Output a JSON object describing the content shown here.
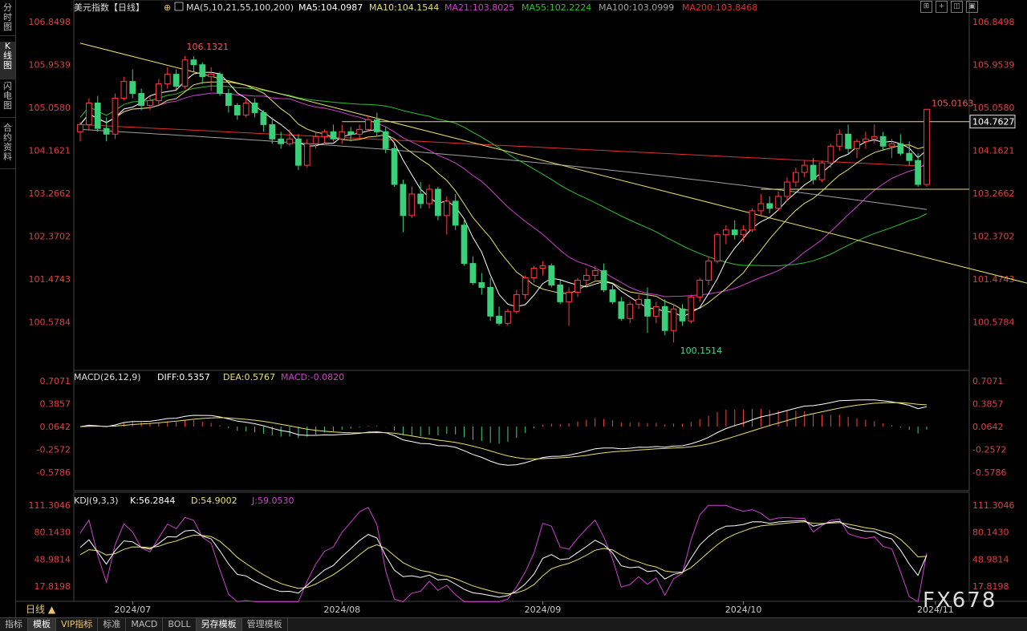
{
  "sidebar": {
    "tabs": [
      {
        "label": "分时图",
        "active": false
      },
      {
        "label": "K线图",
        "active": true
      },
      {
        "label": "闪电图",
        "active": false
      },
      {
        "label": "合约资料",
        "active": false
      }
    ]
  },
  "header": {
    "instrument": "美元指数【日线】",
    "ma_label": "MA(5,10,21,55,100,200)",
    "ma_values": [
      {
        "text": "MA5:104.0987",
        "color": "#ffffff"
      },
      {
        "text": "MA10:104.1544",
        "color": "#e8e070"
      },
      {
        "text": "MA21:103.8025",
        "color": "#d040d0"
      },
      {
        "text": "MA55:102.2224",
        "color": "#30c030"
      },
      {
        "text": "MA100:103.0999",
        "color": "#a0a0a0"
      },
      {
        "text": "MA200:103.8468",
        "color": "#e03030"
      }
    ]
  },
  "toolbar_icons": [
    "grid-icon",
    "plus-icon",
    "split-icon",
    "panel-icon"
  ],
  "price_axis": {
    "ticks": [
      "106.8498",
      "105.9539",
      "105.0580",
      "104.1621",
      "103.2662",
      "102.3702",
      "101.4743",
      "100.5784"
    ],
    "current_price": "104.7627"
  },
  "annotations": {
    "high": "106.1321",
    "low": "100.1514",
    "last": "105.0163"
  },
  "macd": {
    "label": "MACD(26,12,9)",
    "diff": "DIFF:0.5357",
    "dea": "DEA:0.5767",
    "macd": "MACD:-0.0820",
    "ticks": [
      "0.7071",
      "0.3857",
      "0.0642",
      "-0.2572",
      "-0.5786"
    ]
  },
  "kdj": {
    "label": "KDJ(9,3,3)",
    "k": "K:56.2844",
    "d": "D:54.9002",
    "j": "J:59.0530",
    "ticks": [
      "111.3046",
      "80.1430",
      "48.9814",
      "17.8198"
    ]
  },
  "time_axis": [
    "2024/07",
    "2024/08",
    "2024/09",
    "2024/10",
    "2024/11"
  ],
  "period_button": "日线 ▲",
  "bottom_tabs": [
    {
      "label": "指标",
      "active": false,
      "vip": false
    },
    {
      "label": "模板",
      "active": true,
      "vip": false
    },
    {
      "label": "VIP指标",
      "active": false,
      "vip": true
    },
    {
      "label": "标准",
      "active": false,
      "vip": false
    },
    {
      "label": "MACD",
      "active": false,
      "vip": false
    },
    {
      "label": "BOLL",
      "active": false,
      "vip": false
    },
    {
      "label": "另存模板",
      "active": true,
      "vip": false
    },
    {
      "label": "管理模板",
      "active": false,
      "vip": false
    }
  ],
  "watermark": "FX678",
  "chart_data": {
    "type": "candlestick",
    "title": "美元指数【日线】",
    "ylim": [
      99.6,
      107.0
    ],
    "candles": [
      [
        104.55,
        104.75,
        104.35,
        104.7
      ],
      [
        104.7,
        105.25,
        104.6,
        105.15
      ],
      [
        105.15,
        105.3,
        104.55,
        104.62
      ],
      [
        104.62,
        104.85,
        104.35,
        104.5
      ],
      [
        104.5,
        105.35,
        104.4,
        105.25
      ],
      [
        105.25,
        105.7,
        105.2,
        105.6
      ],
      [
        105.6,
        105.85,
        105.25,
        105.35
      ],
      [
        105.35,
        105.45,
        105.0,
        105.1
      ],
      [
        105.1,
        105.3,
        105.0,
        105.2
      ],
      [
        105.2,
        105.65,
        105.1,
        105.55
      ],
      [
        105.55,
        105.9,
        105.45,
        105.75
      ],
      [
        105.75,
        105.85,
        105.4,
        105.5
      ],
      [
        105.5,
        106.13,
        105.45,
        106.05
      ],
      [
        106.05,
        106.13,
        105.8,
        105.95
      ],
      [
        105.95,
        106.0,
        105.55,
        105.7
      ],
      [
        105.7,
        105.9,
        105.4,
        105.75
      ],
      [
        105.75,
        105.8,
        105.3,
        105.35
      ],
      [
        105.35,
        105.45,
        104.95,
        105.1
      ],
      [
        105.1,
        105.15,
        104.8,
        104.9
      ],
      [
        104.9,
        105.25,
        104.85,
        105.15
      ],
      [
        105.15,
        105.25,
        104.85,
        104.95
      ],
      [
        104.95,
        105.0,
        104.55,
        104.7
      ],
      [
        104.7,
        104.85,
        104.3,
        104.4
      ],
      [
        104.4,
        104.55,
        104.2,
        104.3
      ],
      [
        104.3,
        104.6,
        104.25,
        104.4
      ],
      [
        104.4,
        104.5,
        103.75,
        103.85
      ],
      [
        103.85,
        104.4,
        103.8,
        104.3
      ],
      [
        104.3,
        104.55,
        104.2,
        104.45
      ],
      [
        104.45,
        104.6,
        104.3,
        104.55
      ],
      [
        104.55,
        104.7,
        104.35,
        104.4
      ],
      [
        104.4,
        104.7,
        104.3,
        104.55
      ],
      [
        104.55,
        104.65,
        104.35,
        104.5
      ],
      [
        104.5,
        104.7,
        104.4,
        104.6
      ],
      [
        104.6,
        104.9,
        104.55,
        104.8
      ],
      [
        104.8,
        104.95,
        104.45,
        104.55
      ],
      [
        104.55,
        104.65,
        104.1,
        104.2
      ],
      [
        104.2,
        104.3,
        103.4,
        103.45
      ],
      [
        103.45,
        103.55,
        102.45,
        102.8
      ],
      [
        102.8,
        103.4,
        102.75,
        103.25
      ],
      [
        103.25,
        103.5,
        102.95,
        103.05
      ],
      [
        103.05,
        103.45,
        102.95,
        103.35
      ],
      [
        103.35,
        103.4,
        102.7,
        102.8
      ],
      [
        102.8,
        103.2,
        102.4,
        103.1
      ],
      [
        103.1,
        103.25,
        102.5,
        102.6
      ],
      [
        102.6,
        102.7,
        101.75,
        101.8
      ],
      [
        101.8,
        101.95,
        101.35,
        101.4
      ],
      [
        101.4,
        101.6,
        101.15,
        101.3
      ],
      [
        101.3,
        101.5,
        100.6,
        100.7
      ],
      [
        100.7,
        100.9,
        100.5,
        100.55
      ],
      [
        100.55,
        100.85,
        100.5,
        100.8
      ],
      [
        100.8,
        101.25,
        100.75,
        101.15
      ],
      [
        101.15,
        101.55,
        101.05,
        101.5
      ],
      [
        101.5,
        101.75,
        101.4,
        101.7
      ],
      [
        101.7,
        101.85,
        101.55,
        101.75
      ],
      [
        101.75,
        101.8,
        101.3,
        101.35
      ],
      [
        101.35,
        101.45,
        100.95,
        101.0
      ],
      [
        101.0,
        101.3,
        100.5,
        101.2
      ],
      [
        101.2,
        101.5,
        101.1,
        101.45
      ],
      [
        101.45,
        101.7,
        101.35,
        101.55
      ],
      [
        101.55,
        101.75,
        101.45,
        101.65
      ],
      [
        101.65,
        101.8,
        101.2,
        101.25
      ],
      [
        101.25,
        101.35,
        100.95,
        101.0
      ],
      [
        101.0,
        101.1,
        100.6,
        100.65
      ],
      [
        100.65,
        101.0,
        100.55,
        100.95
      ],
      [
        100.95,
        101.15,
        100.85,
        101.05
      ],
      [
        101.05,
        101.3,
        100.35,
        100.7
      ],
      [
        100.7,
        101.0,
        100.55,
        100.9
      ],
      [
        100.9,
        101.05,
        100.3,
        100.4
      ],
      [
        100.4,
        100.95,
        100.15,
        100.85
      ],
      [
        100.85,
        100.95,
        100.5,
        100.6
      ],
      [
        100.6,
        101.15,
        100.55,
        101.1
      ],
      [
        101.1,
        101.5,
        101.0,
        101.45
      ],
      [
        101.45,
        101.95,
        101.35,
        101.85
      ],
      [
        101.85,
        102.45,
        101.8,
        102.4
      ],
      [
        102.4,
        102.6,
        102.2,
        102.5
      ],
      [
        102.5,
        102.7,
        102.3,
        102.4
      ],
      [
        102.4,
        102.6,
        102.25,
        102.5
      ],
      [
        102.5,
        102.95,
        102.45,
        102.9
      ],
      [
        102.9,
        103.25,
        102.8,
        103.05
      ],
      [
        103.05,
        103.2,
        102.85,
        102.95
      ],
      [
        102.95,
        103.3,
        102.9,
        103.2
      ],
      [
        103.2,
        103.6,
        103.1,
        103.5
      ],
      [
        103.5,
        103.8,
        103.4,
        103.7
      ],
      [
        103.7,
        103.95,
        103.6,
        103.85
      ],
      [
        103.85,
        104.0,
        103.45,
        103.55
      ],
      [
        103.55,
        103.95,
        103.5,
        103.9
      ],
      [
        103.9,
        104.3,
        103.8,
        104.25
      ],
      [
        104.25,
        104.6,
        104.15,
        104.5
      ],
      [
        104.5,
        104.7,
        104.1,
        104.2
      ],
      [
        104.2,
        104.4,
        104.0,
        104.35
      ],
      [
        104.35,
        104.55,
        104.2,
        104.4
      ],
      [
        104.4,
        104.7,
        104.3,
        104.45
      ],
      [
        104.45,
        104.55,
        104.15,
        104.25
      ],
      [
        104.25,
        104.4,
        104.0,
        104.3
      ],
      [
        104.3,
        104.5,
        104.05,
        104.1
      ],
      [
        104.1,
        104.35,
        103.85,
        103.95
      ],
      [
        103.95,
        104.1,
        103.4,
        103.45
      ],
      [
        103.45,
        105.02,
        103.4,
        105.02
      ]
    ],
    "trendline": [
      [
        0,
        106.4
      ],
      [
        144,
        99.75
      ]
    ],
    "hlines": [
      104.76,
      103.35
    ]
  }
}
